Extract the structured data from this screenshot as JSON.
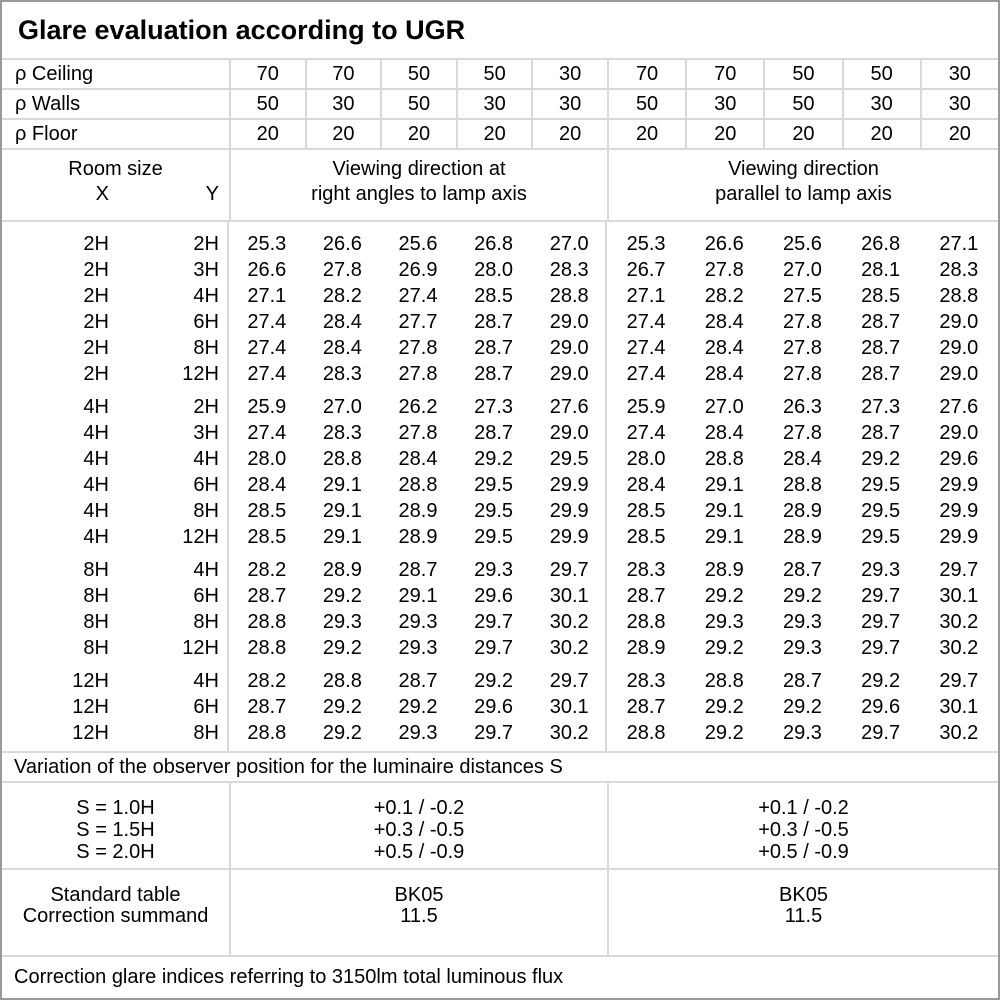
{
  "title": "Glare evaluation according to UGR",
  "reflectances": {
    "rows": [
      {
        "label": "ρ Ceiling",
        "values": [
          "70",
          "70",
          "50",
          "50",
          "30",
          "70",
          "70",
          "50",
          "50",
          "30"
        ]
      },
      {
        "label": "ρ Walls",
        "values": [
          "50",
          "30",
          "50",
          "30",
          "30",
          "50",
          "30",
          "50",
          "30",
          "30"
        ]
      },
      {
        "label": "ρ Floor",
        "values": [
          "20",
          "20",
          "20",
          "20",
          "20",
          "20",
          "20",
          "20",
          "20",
          "20"
        ]
      }
    ]
  },
  "header": {
    "room_size_label": "Room size",
    "x_label": "X",
    "y_label": "Y",
    "group1_line1": "Viewing direction at",
    "group1_line2": "right angles to lamp axis",
    "group2_line1": "Viewing direction",
    "group2_line2": "parallel to lamp axis"
  },
  "ugr_table": {
    "groups": [
      {
        "rows": [
          {
            "x": "2H",
            "y": "2H",
            "values": [
              "25.3",
              "26.6",
              "25.6",
              "26.8",
              "27.0",
              "25.3",
              "26.6",
              "25.6",
              "26.8",
              "27.1"
            ]
          },
          {
            "x": "2H",
            "y": "3H",
            "values": [
              "26.6",
              "27.8",
              "26.9",
              "28.0",
              "28.3",
              "26.7",
              "27.8",
              "27.0",
              "28.1",
              "28.3"
            ]
          },
          {
            "x": "2H",
            "y": "4H",
            "values": [
              "27.1",
              "28.2",
              "27.4",
              "28.5",
              "28.8",
              "27.1",
              "28.2",
              "27.5",
              "28.5",
              "28.8"
            ]
          },
          {
            "x": "2H",
            "y": "6H",
            "values": [
              "27.4",
              "28.4",
              "27.7",
              "28.7",
              "29.0",
              "27.4",
              "28.4",
              "27.8",
              "28.7",
              "29.0"
            ]
          },
          {
            "x": "2H",
            "y": "8H",
            "values": [
              "27.4",
              "28.4",
              "27.8",
              "28.7",
              "29.0",
              "27.4",
              "28.4",
              "27.8",
              "28.7",
              "29.0"
            ]
          },
          {
            "x": "2H",
            "y": "12H",
            "values": [
              "27.4",
              "28.3",
              "27.8",
              "28.7",
              "29.0",
              "27.4",
              "28.4",
              "27.8",
              "28.7",
              "29.0"
            ]
          }
        ]
      },
      {
        "rows": [
          {
            "x": "4H",
            "y": "2H",
            "values": [
              "25.9",
              "27.0",
              "26.2",
              "27.3",
              "27.6",
              "25.9",
              "27.0",
              "26.3",
              "27.3",
              "27.6"
            ]
          },
          {
            "x": "4H",
            "y": "3H",
            "values": [
              "27.4",
              "28.3",
              "27.8",
              "28.7",
              "29.0",
              "27.4",
              "28.4",
              "27.8",
              "28.7",
              "29.0"
            ]
          },
          {
            "x": "4H",
            "y": "4H",
            "values": [
              "28.0",
              "28.8",
              "28.4",
              "29.2",
              "29.5",
              "28.0",
              "28.8",
              "28.4",
              "29.2",
              "29.6"
            ]
          },
          {
            "x": "4H",
            "y": "6H",
            "values": [
              "28.4",
              "29.1",
              "28.8",
              "29.5",
              "29.9",
              "28.4",
              "29.1",
              "28.8",
              "29.5",
              "29.9"
            ]
          },
          {
            "x": "4H",
            "y": "8H",
            "values": [
              "28.5",
              "29.1",
              "28.9",
              "29.5",
              "29.9",
              "28.5",
              "29.1",
              "28.9",
              "29.5",
              "29.9"
            ]
          },
          {
            "x": "4H",
            "y": "12H",
            "values": [
              "28.5",
              "29.1",
              "28.9",
              "29.5",
              "29.9",
              "28.5",
              "29.1",
              "28.9",
              "29.5",
              "29.9"
            ]
          }
        ]
      },
      {
        "rows": [
          {
            "x": "8H",
            "y": "4H",
            "values": [
              "28.2",
              "28.9",
              "28.7",
              "29.3",
              "29.7",
              "28.3",
              "28.9",
              "28.7",
              "29.3",
              "29.7"
            ]
          },
          {
            "x": "8H",
            "y": "6H",
            "values": [
              "28.7",
              "29.2",
              "29.1",
              "29.6",
              "30.1",
              "28.7",
              "29.2",
              "29.2",
              "29.7",
              "30.1"
            ]
          },
          {
            "x": "8H",
            "y": "8H",
            "values": [
              "28.8",
              "29.3",
              "29.3",
              "29.7",
              "30.2",
              "28.8",
              "29.3",
              "29.3",
              "29.7",
              "30.2"
            ]
          },
          {
            "x": "8H",
            "y": "12H",
            "values": [
              "28.8",
              "29.2",
              "29.3",
              "29.7",
              "30.2",
              "28.9",
              "29.2",
              "29.3",
              "29.7",
              "30.2"
            ]
          }
        ]
      },
      {
        "rows": [
          {
            "x": "12H",
            "y": "4H",
            "values": [
              "28.2",
              "28.8",
              "28.7",
              "29.2",
              "29.7",
              "28.3",
              "28.8",
              "28.7",
              "29.2",
              "29.7"
            ]
          },
          {
            "x": "12H",
            "y": "6H",
            "values": [
              "28.7",
              "29.2",
              "29.2",
              "29.6",
              "30.1",
              "28.7",
              "29.2",
              "29.2",
              "29.6",
              "30.1"
            ]
          },
          {
            "x": "12H",
            "y": "8H",
            "values": [
              "28.8",
              "29.2",
              "29.3",
              "29.7",
              "30.2",
              "28.8",
              "29.2",
              "29.3",
              "29.7",
              "30.2"
            ]
          }
        ]
      }
    ]
  },
  "variation_note": "Variation of the observer position for the luminaire distances S",
  "spacing": {
    "rows": [
      {
        "label": "S = 1.0H",
        "right_angles": "+0.1 / -0.2",
        "parallel": "+0.1 / -0.2"
      },
      {
        "label": "S = 1.5H",
        "right_angles": "+0.3 / -0.5",
        "parallel": "+0.3 / -0.5"
      },
      {
        "label": "S = 2.0H",
        "right_angles": "+0.5 / -0.9",
        "parallel": "+0.5 / -0.9"
      }
    ]
  },
  "standard": {
    "label_line1": "Standard table",
    "label_line2": "Correction summand",
    "right_angles_line1": "BK05",
    "right_angles_line2": "11.5",
    "parallel_line1": "BK05",
    "parallel_line2": "11.5"
  },
  "footer_note": "Correction glare indices referring to 3150lm total luminous flux",
  "colors": {
    "outer_border": "#9a9a9a",
    "grid_line": "#d9d9d9",
    "text": "#000000",
    "background": "#ffffff"
  }
}
